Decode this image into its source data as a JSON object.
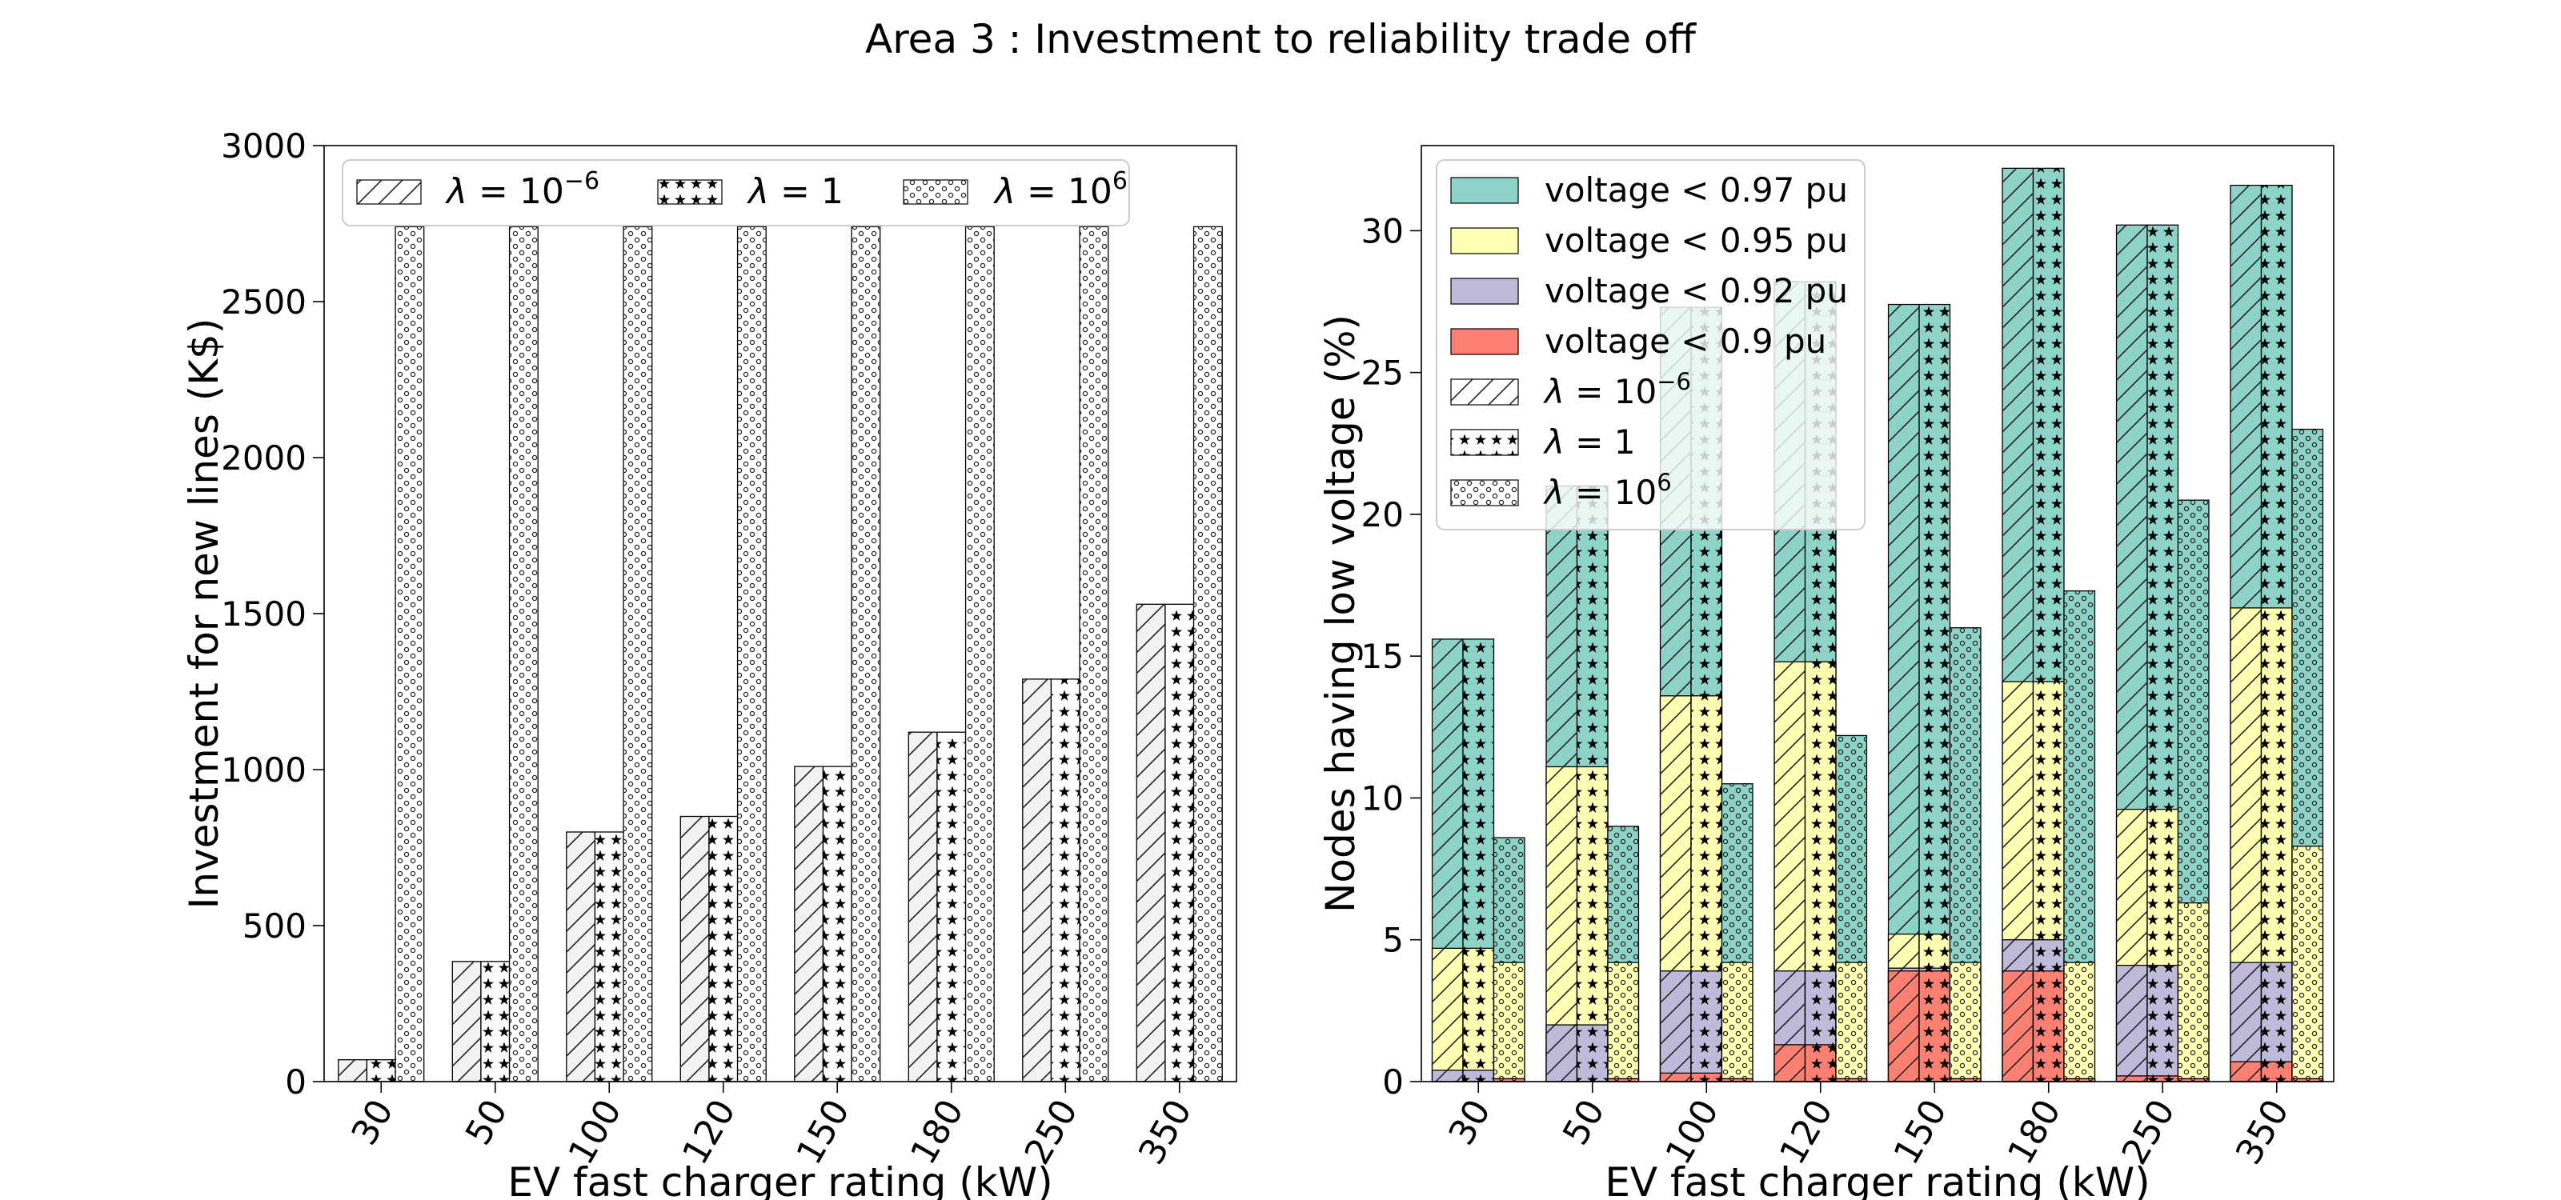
{
  "figure_title": "Area 3 : Investment to reliability trade off",
  "chart_data": [
    {
      "type": "bar",
      "title": "",
      "xlabel": "EV fast charger rating (kW)",
      "ylabel": "Investment for new lines (K$)",
      "categories": [
        "30",
        "50",
        "100",
        "120",
        "150",
        "180",
        "250",
        "350"
      ],
      "ylim": [
        0,
        3000
      ],
      "yticks": [
        0,
        500,
        1000,
        1500,
        2000,
        2500,
        3000
      ],
      "grid": false,
      "legend_location": "top",
      "series": [
        {
          "name": "λ = 10^−6",
          "pattern": "diagonal-hatch",
          "values": [
            70,
            385,
            800,
            850,
            1010,
            1120,
            1290,
            1530
          ]
        },
        {
          "name": "λ = 1",
          "pattern": "star-hatch",
          "values": [
            70,
            385,
            800,
            850,
            1010,
            1120,
            1290,
            1530
          ]
        },
        {
          "name": "λ = 10^6",
          "pattern": "circle-hatch",
          "values": [
            2740,
            2740,
            2740,
            2740,
            2740,
            2740,
            2740,
            2740
          ]
        }
      ]
    },
    {
      "type": "bar",
      "stacked": true,
      "title": "",
      "xlabel": "EV fast charger rating (kW)",
      "ylabel": "Nodes having low voltage (%)",
      "categories": [
        "30",
        "50",
        "100",
        "120",
        "150",
        "180",
        "250",
        "350"
      ],
      "ylim": [
        0,
        33
      ],
      "yticks": [
        0,
        5,
        10,
        15,
        20,
        25,
        30
      ],
      "grid": false,
      "legend_location": "top-left",
      "levels": [
        {
          "name": "voltage < 0.97 pu",
          "color": "#8dd3c7"
        },
        {
          "name": "voltage < 0.95 pu",
          "color": "#ffffb3"
        },
        {
          "name": "voltage < 0.92 pu",
          "color": "#bebada"
        },
        {
          "name": "voltage < 0.9 pu",
          "color": "#fb8072"
        }
      ],
      "series": [
        {
          "name": "λ = 10^−6",
          "pattern": "diagonal-hatch",
          "v097": [
            15.6,
            21.0,
            27.3,
            28.2,
            27.4,
            32.2,
            30.2,
            31.6
          ],
          "v095": [
            4.7,
            11.1,
            13.6,
            14.8,
            5.2,
            14.1,
            9.6,
            16.7
          ],
          "v092": [
            0.4,
            2.0,
            3.9,
            3.9,
            4.0,
            5.0,
            4.1,
            4.2
          ],
          "v090": [
            0.0,
            0.0,
            0.3,
            1.3,
            3.9,
            3.9,
            0.2,
            0.7
          ]
        },
        {
          "name": "λ = 1",
          "pattern": "star-hatch",
          "v097": [
            15.6,
            21.0,
            27.3,
            28.2,
            27.4,
            32.2,
            30.2,
            31.6
          ],
          "v095": [
            4.7,
            11.1,
            13.6,
            14.8,
            5.2,
            14.1,
            9.6,
            16.7
          ],
          "v092": [
            0.4,
            2.0,
            3.9,
            3.9,
            4.0,
            5.0,
            4.1,
            4.2
          ],
          "v090": [
            0.0,
            0.0,
            0.3,
            1.3,
            3.9,
            3.9,
            0.2,
            0.7
          ]
        },
        {
          "name": "λ = 10^6",
          "pattern": "circle-hatch",
          "v097": [
            8.6,
            9.0,
            10.5,
            12.2,
            16.0,
            17.3,
            20.5,
            23.0
          ],
          "v095": [
            4.2,
            4.2,
            4.2,
            4.2,
            4.2,
            4.2,
            6.3,
            8.3
          ],
          "v092": [
            0.1,
            0.1,
            0.1,
            0.1,
            0.1,
            0.1,
            0.1,
            0.1
          ],
          "v090": [
            0.1,
            0.1,
            0.1,
            0.1,
            0.1,
            0.1,
            0.1,
            0.1
          ]
        }
      ]
    }
  ]
}
